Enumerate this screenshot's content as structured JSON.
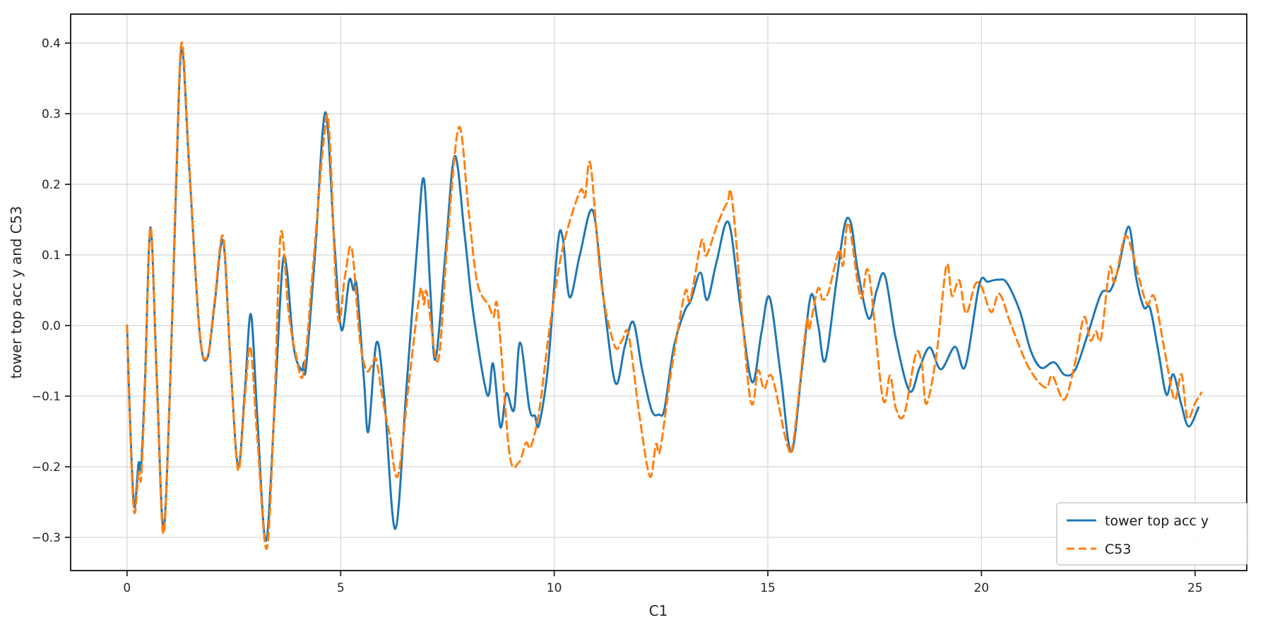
{
  "figure": {
    "background": "#ffffff",
    "grid_color": "#d5d5d5",
    "spine_color": "#262626",
    "tick_color": "#262626",
    "text_color": "#262626"
  },
  "axes": {
    "xlabel": "C1",
    "ylabel": "tower top acc y and C53",
    "x_tick_labels": [
      "0",
      "5",
      "10",
      "15",
      "20",
      "25"
    ],
    "x_tick_values": [
      0,
      5,
      10,
      15,
      20,
      25
    ],
    "y_tick_labels": [
      "0.4",
      "0.3",
      "0.2",
      "0.1",
      "0.0",
      "−0.1",
      "−0.2",
      "−0.3"
    ],
    "y_tick_values": [
      0.4,
      0.3,
      0.2,
      0.1,
      0.0,
      -0.1,
      -0.2,
      -0.3
    ]
  },
  "legend": {
    "items": [
      {
        "label": "tower top acc y",
        "color": "#1f77b4",
        "dash": "solid"
      },
      {
        "label": "C53",
        "color": "#ff7f0e",
        "dash": "dashed"
      }
    ]
  },
  "chart_data": {
    "type": "line",
    "title": "",
    "xlabel": "C1",
    "ylabel": "tower top acc y and C53",
    "xlim": [
      -1.32,
      26.21
    ],
    "ylim": [
      -0.347,
      0.441
    ],
    "grid": true,
    "legend_position": "lower right",
    "series": [
      {
        "name": "tower top acc y",
        "color": "#1f77b4",
        "style": "solid",
        "line_width": 3,
        "points": [
          [
            0.0,
            0.0
          ],
          [
            0.08,
            -0.15
          ],
          [
            0.17,
            -0.257
          ],
          [
            0.27,
            -0.195
          ],
          [
            0.33,
            -0.2
          ],
          [
            0.42,
            -0.08
          ],
          [
            0.55,
            0.139
          ],
          [
            0.7,
            -0.08
          ],
          [
            0.85,
            -0.288
          ],
          [
            1.0,
            -0.1
          ],
          [
            1.15,
            0.2
          ],
          [
            1.28,
            0.393
          ],
          [
            1.45,
            0.23
          ],
          [
            1.7,
            -0.01
          ],
          [
            1.88,
            -0.046
          ],
          [
            2.05,
            0.03
          ],
          [
            2.25,
            0.12
          ],
          [
            2.42,
            -0.05
          ],
          [
            2.6,
            -0.2
          ],
          [
            2.76,
            -0.09
          ],
          [
            2.9,
            0.016
          ],
          [
            3.05,
            -0.13
          ],
          [
            3.25,
            -0.305
          ],
          [
            3.45,
            -0.12
          ],
          [
            3.63,
            0.079
          ],
          [
            3.74,
            0.08
          ],
          [
            3.9,
            -0.03
          ],
          [
            4.08,
            -0.063
          ],
          [
            4.14,
            -0.052
          ],
          [
            4.19,
            -0.06
          ],
          [
            4.4,
            0.1
          ],
          [
            4.64,
            0.302
          ],
          [
            4.85,
            0.12
          ],
          [
            5.02,
            -0.006
          ],
          [
            5.2,
            0.064
          ],
          [
            5.3,
            0.05
          ],
          [
            5.38,
            0.055
          ],
          [
            5.55,
            -0.08
          ],
          [
            5.65,
            -0.15
          ],
          [
            5.84,
            -0.024
          ],
          [
            6.02,
            -0.1
          ],
          [
            6.28,
            -0.288
          ],
          [
            6.55,
            -0.08
          ],
          [
            6.8,
            0.12
          ],
          [
            6.95,
            0.207
          ],
          [
            7.1,
            0.05
          ],
          [
            7.22,
            -0.048
          ],
          [
            7.45,
            0.1
          ],
          [
            7.67,
            0.24
          ],
          [
            7.9,
            0.13
          ],
          [
            8.1,
            0.02
          ],
          [
            8.43,
            -0.098
          ],
          [
            8.57,
            -0.054
          ],
          [
            8.74,
            -0.144
          ],
          [
            8.88,
            -0.096
          ],
          [
            9.06,
            -0.119
          ],
          [
            9.2,
            -0.024
          ],
          [
            9.42,
            -0.118
          ],
          [
            9.55,
            -0.128
          ],
          [
            9.64,
            -0.141
          ],
          [
            9.85,
            -0.06
          ],
          [
            10.08,
            0.114
          ],
          [
            10.2,
            0.124
          ],
          [
            10.36,
            0.04
          ],
          [
            10.6,
            0.1
          ],
          [
            10.9,
            0.163
          ],
          [
            11.15,
            0.04
          ],
          [
            11.43,
            -0.081
          ],
          [
            11.65,
            -0.03
          ],
          [
            11.85,
            0.005
          ],
          [
            12.05,
            -0.06
          ],
          [
            12.28,
            -0.12
          ],
          [
            12.45,
            -0.126
          ],
          [
            12.58,
            -0.118
          ],
          [
            12.8,
            -0.03
          ],
          [
            13.05,
            0.02
          ],
          [
            13.2,
            0.036
          ],
          [
            13.42,
            0.075
          ],
          [
            13.58,
            0.036
          ],
          [
            13.8,
            0.09
          ],
          [
            14.08,
            0.146
          ],
          [
            14.35,
            0.03
          ],
          [
            14.63,
            -0.08
          ],
          [
            14.85,
            -0.01
          ],
          [
            15.04,
            0.04
          ],
          [
            15.3,
            -0.07
          ],
          [
            15.55,
            -0.179
          ],
          [
            15.8,
            -0.06
          ],
          [
            16.01,
            0.043
          ],
          [
            16.18,
            0.0
          ],
          [
            16.34,
            -0.05
          ],
          [
            16.6,
            0.06
          ],
          [
            16.8,
            0.143
          ],
          [
            16.95,
            0.144
          ],
          [
            17.1,
            0.08
          ],
          [
            17.36,
            0.01
          ],
          [
            17.55,
            0.05
          ],
          [
            17.74,
            0.071
          ],
          [
            18.0,
            -0.02
          ],
          [
            18.32,
            -0.093
          ],
          [
            18.55,
            -0.06
          ],
          [
            18.79,
            -0.031
          ],
          [
            19.05,
            -0.062
          ],
          [
            19.38,
            -0.03
          ],
          [
            19.62,
            -0.058
          ],
          [
            19.95,
            0.058
          ],
          [
            20.15,
            0.062
          ],
          [
            20.4,
            0.065
          ],
          [
            20.6,
            0.06
          ],
          [
            20.9,
            0.02
          ],
          [
            21.15,
            -0.035
          ],
          [
            21.4,
            -0.06
          ],
          [
            21.7,
            -0.052
          ],
          [
            21.95,
            -0.07
          ],
          [
            22.2,
            -0.062
          ],
          [
            22.5,
            -0.01
          ],
          [
            22.8,
            0.045
          ],
          [
            23.02,
            0.05
          ],
          [
            23.2,
            0.08
          ],
          [
            23.45,
            0.14
          ],
          [
            23.62,
            0.068
          ],
          [
            23.8,
            0.026
          ],
          [
            23.95,
            0.024
          ],
          [
            24.15,
            -0.04
          ],
          [
            24.33,
            -0.098
          ],
          [
            24.49,
            -0.069
          ],
          [
            24.67,
            -0.11
          ],
          [
            24.85,
            -0.143
          ],
          [
            25.08,
            -0.116
          ]
        ]
      },
      {
        "name": "C53",
        "color": "#ff7f0e",
        "style": "dashed",
        "line_width": 3,
        "points": [
          [
            0.0,
            0.0
          ],
          [
            0.08,
            -0.16
          ],
          [
            0.17,
            -0.265
          ],
          [
            0.27,
            -0.21
          ],
          [
            0.33,
            -0.215
          ],
          [
            0.42,
            -0.09
          ],
          [
            0.55,
            0.139
          ],
          [
            0.7,
            -0.085
          ],
          [
            0.85,
            -0.295
          ],
          [
            1.0,
            -0.1
          ],
          [
            1.15,
            0.21
          ],
          [
            1.28,
            0.401
          ],
          [
            1.45,
            0.235
          ],
          [
            1.7,
            -0.008
          ],
          [
            1.88,
            -0.044
          ],
          [
            2.05,
            0.035
          ],
          [
            2.25,
            0.126
          ],
          [
            2.42,
            -0.05
          ],
          [
            2.6,
            -0.205
          ],
          [
            2.76,
            -0.1
          ],
          [
            2.89,
            -0.031
          ],
          [
            3.05,
            -0.16
          ],
          [
            3.27,
            -0.316
          ],
          [
            3.45,
            -0.11
          ],
          [
            3.6,
            0.131
          ],
          [
            3.78,
            0.02
          ],
          [
            3.95,
            -0.04
          ],
          [
            4.13,
            -0.068
          ],
          [
            4.35,
            0.08
          ],
          [
            4.6,
            0.26
          ],
          [
            4.73,
            0.278
          ],
          [
            4.93,
            0.014
          ],
          [
            5.1,
            0.07
          ],
          [
            5.26,
            0.109
          ],
          [
            5.45,
            -0.02
          ],
          [
            5.6,
            -0.063
          ],
          [
            5.72,
            -0.058
          ],
          [
            5.83,
            -0.048
          ],
          [
            6.0,
            -0.11
          ],
          [
            6.15,
            -0.155
          ],
          [
            6.34,
            -0.213
          ],
          [
            6.6,
            -0.08
          ],
          [
            6.86,
            0.048
          ],
          [
            6.95,
            0.03
          ],
          [
            7.02,
            0.046
          ],
          [
            7.28,
            -0.05
          ],
          [
            7.5,
            0.12
          ],
          [
            7.77,
            0.281
          ],
          [
            8.0,
            0.16
          ],
          [
            8.2,
            0.06
          ],
          [
            8.47,
            0.028
          ],
          [
            8.58,
            0.012
          ],
          [
            8.68,
            0.022
          ],
          [
            8.95,
            -0.18
          ],
          [
            9.17,
            -0.194
          ],
          [
            9.34,
            -0.166
          ],
          [
            9.45,
            -0.172
          ],
          [
            9.65,
            -0.12
          ],
          [
            9.9,
            0.0
          ],
          [
            10.2,
            0.11
          ],
          [
            10.6,
            0.19
          ],
          [
            10.72,
            0.182
          ],
          [
            10.85,
            0.228
          ],
          [
            11.1,
            0.06
          ],
          [
            11.41,
            -0.028
          ],
          [
            11.58,
            -0.022
          ],
          [
            11.74,
            -0.013
          ],
          [
            12.0,
            -0.13
          ],
          [
            12.24,
            -0.214
          ],
          [
            12.38,
            -0.168
          ],
          [
            12.48,
            -0.176
          ],
          [
            12.75,
            -0.06
          ],
          [
            13.06,
            0.047
          ],
          [
            13.18,
            0.036
          ],
          [
            13.45,
            0.12
          ],
          [
            13.56,
            0.099
          ],
          [
            13.8,
            0.14
          ],
          [
            14.05,
            0.174
          ],
          [
            14.18,
            0.17
          ],
          [
            14.58,
            -0.101
          ],
          [
            14.77,
            -0.063
          ],
          [
            14.91,
            -0.09
          ],
          [
            15.1,
            -0.073
          ],
          [
            15.45,
            -0.168
          ],
          [
            15.6,
            -0.163
          ],
          [
            15.9,
            0.002
          ],
          [
            15.97,
            -0.005
          ],
          [
            16.17,
            0.052
          ],
          [
            16.28,
            0.037
          ],
          [
            16.42,
            0.048
          ],
          [
            16.67,
            0.107
          ],
          [
            16.76,
            0.085
          ],
          [
            16.89,
            0.145
          ],
          [
            17.17,
            0.04
          ],
          [
            17.36,
            0.075
          ],
          [
            17.69,
            -0.103
          ],
          [
            17.86,
            -0.071
          ],
          [
            18.0,
            -0.118
          ],
          [
            18.19,
            -0.126
          ],
          [
            18.46,
            -0.041
          ],
          [
            18.6,
            -0.053
          ],
          [
            18.71,
            -0.111
          ],
          [
            18.95,
            -0.04
          ],
          [
            19.18,
            0.085
          ],
          [
            19.31,
            0.042
          ],
          [
            19.48,
            0.064
          ],
          [
            19.64,
            0.017
          ],
          [
            19.85,
            0.058
          ],
          [
            20.0,
            0.055
          ],
          [
            20.23,
            0.019
          ],
          [
            20.42,
            0.045
          ],
          [
            20.7,
            0.0
          ],
          [
            21.11,
            -0.06
          ],
          [
            21.5,
            -0.088
          ],
          [
            21.66,
            -0.071
          ],
          [
            21.94,
            -0.105
          ],
          [
            22.2,
            -0.05
          ],
          [
            22.4,
            0.012
          ],
          [
            22.55,
            -0.021
          ],
          [
            22.68,
            -0.008
          ],
          [
            22.8,
            -0.018
          ],
          [
            23.0,
            0.081
          ],
          [
            23.12,
            0.062
          ],
          [
            23.36,
            0.126
          ],
          [
            23.55,
            0.1
          ],
          [
            23.7,
            0.065
          ],
          [
            23.88,
            0.03
          ],
          [
            24.05,
            0.04
          ],
          [
            24.3,
            -0.04
          ],
          [
            24.52,
            -0.105
          ],
          [
            24.68,
            -0.069
          ],
          [
            24.82,
            -0.131
          ],
          [
            25.0,
            -0.11
          ],
          [
            25.15,
            -0.095
          ]
        ]
      }
    ]
  }
}
